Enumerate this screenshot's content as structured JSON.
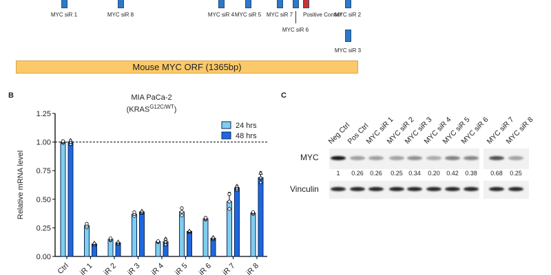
{
  "panel_a": {
    "sirnas": [
      {
        "label": "MYC siR 1",
        "color": "#2f78c4"
      },
      {
        "label": "MYC siR 8",
        "color": "#2f78c4"
      },
      {
        "label": "MYC siR 4",
        "color": "#2f78c4"
      },
      {
        "label": "MYC siR 5",
        "color": "#2f78c4"
      },
      {
        "label": "MYC siR 7",
        "color": "#2f78c4"
      },
      {
        "label": "MYC siR 6",
        "color": "#2f78c4"
      },
      {
        "label": "Positive Control",
        "color": "#c8352e"
      },
      {
        "label": "MYC siR 2",
        "color": "#2f78c4"
      },
      {
        "label": "MYC siR 3",
        "color": "#2f78c4"
      }
    ],
    "orf_label": "Mouse MYC ORF (1365bp)"
  },
  "panel_b_label": "B",
  "panel_c_label": "C",
  "chart_data": {
    "type": "bar",
    "title": "MIA PaCa-2",
    "subtitle_base": "(KRAS",
    "subtitle_sup": "G12C/WT",
    "subtitle_end": ")",
    "ylabel": "Relative mRNA level",
    "ylim": [
      0,
      1.25
    ],
    "yticks": [
      "0.00",
      "0.25",
      "0.50",
      "0.75",
      "1.00",
      "1.25"
    ],
    "categories": [
      "Ctrl",
      "iR 1",
      "iR 2",
      "iR 3",
      "iR 4",
      "iR 5",
      "iR 6",
      "iR 7",
      "iR 8"
    ],
    "reference_line": 1.0,
    "legend_position": "top-right",
    "series": [
      {
        "name": "24 hrs",
        "color": "#7fcdf0",
        "values": [
          1.0,
          0.27,
          0.15,
          0.37,
          0.13,
          0.39,
          0.33,
          0.48,
          0.38
        ],
        "errors": [
          0.01,
          0.02,
          0.01,
          0.02,
          0.005,
          0.04,
          0.01,
          0.08,
          0.01
        ]
      },
      {
        "name": "48 hrs",
        "color": "#1f67e0",
        "values": [
          1.0,
          0.11,
          0.12,
          0.39,
          0.13,
          0.22,
          0.16,
          0.6,
          0.69
        ],
        "errors": [
          0.02,
          0.01,
          0.01,
          0.01,
          0.03,
          0.005,
          0.01,
          0.02,
          0.05
        ]
      }
    ]
  },
  "panel_c": {
    "lanes": [
      "Neg Ctrl",
      "Pos Ctrl",
      "MYC siR 1",
      "MYC siR 2",
      "MYC siR 3",
      "MYC siR 4",
      "MYC siR 5",
      "MYC siR 6",
      "MYC siR 7",
      "MYC siR 8"
    ],
    "myc_label": "MYC",
    "vinculin_label": "Vinculin",
    "quantification": [
      "1",
      "0.26",
      "0.26",
      "0.25",
      "0.34",
      "0.20",
      "0.42",
      "0.38",
      "0.68",
      "0.25"
    ]
  }
}
